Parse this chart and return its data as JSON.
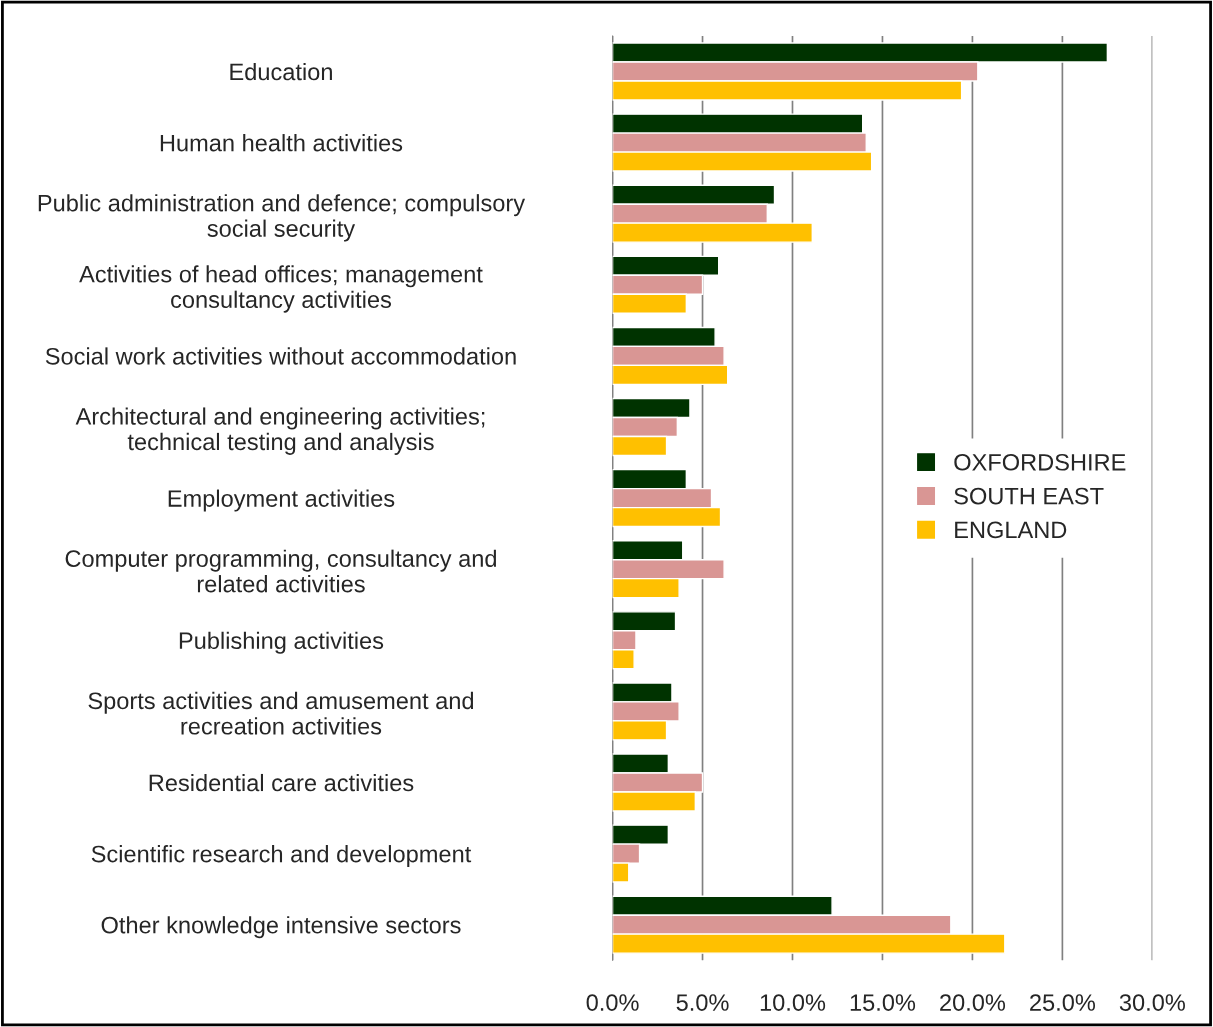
{
  "chart_data": {
    "type": "bar",
    "orientation": "horizontal",
    "categories": [
      "Education",
      "Human health activities",
      "Public administration and defence; compulsory\nsocial security",
      "Activities of head offices; management\nconsultancy activities",
      "Social work activities without accommodation",
      "Architectural and engineering activities;\ntechnical testing and analysis",
      "Employment activities",
      "Computer programming, consultancy and\nrelated activities",
      "Publishing activities",
      "Sports activities and amusement and\nrecreation activities",
      "Residential care activities",
      "Scientific research and development",
      "Other knowledge intensive sectors"
    ],
    "series": [
      {
        "name": "OXFORDSHIRE",
        "color": "#003300",
        "values": [
          27.5,
          13.9,
          9.0,
          5.9,
          5.7,
          4.3,
          4.1,
          3.9,
          3.5,
          3.3,
          3.1,
          3.1,
          12.2
        ]
      },
      {
        "name": "SOUTH EAST",
        "color": "#d99694",
        "values": [
          20.3,
          14.1,
          8.6,
          5.0,
          6.2,
          3.6,
          5.5,
          6.2,
          1.3,
          3.7,
          5.0,
          1.5,
          18.8
        ]
      },
      {
        "name": "ENGLAND",
        "color": "#ffc000",
        "values": [
          19.4,
          14.4,
          11.1,
          4.1,
          6.4,
          3.0,
          6.0,
          3.7,
          1.2,
          3.0,
          4.6,
          0.9,
          21.8
        ]
      }
    ],
    "xlim": [
      0,
      30
    ],
    "xticks": [
      {
        "value": 0,
        "label": "0.0%"
      },
      {
        "value": 5,
        "label": "5.0%"
      },
      {
        "value": 10,
        "label": "10.0%"
      },
      {
        "value": 15,
        "label": "15.0%"
      },
      {
        "value": 20,
        "label": "20.0%"
      },
      {
        "value": 25,
        "label": "25.0%"
      },
      {
        "value": 30,
        "label": "30.0%"
      }
    ],
    "grid": "x",
    "legend": "center right"
  }
}
